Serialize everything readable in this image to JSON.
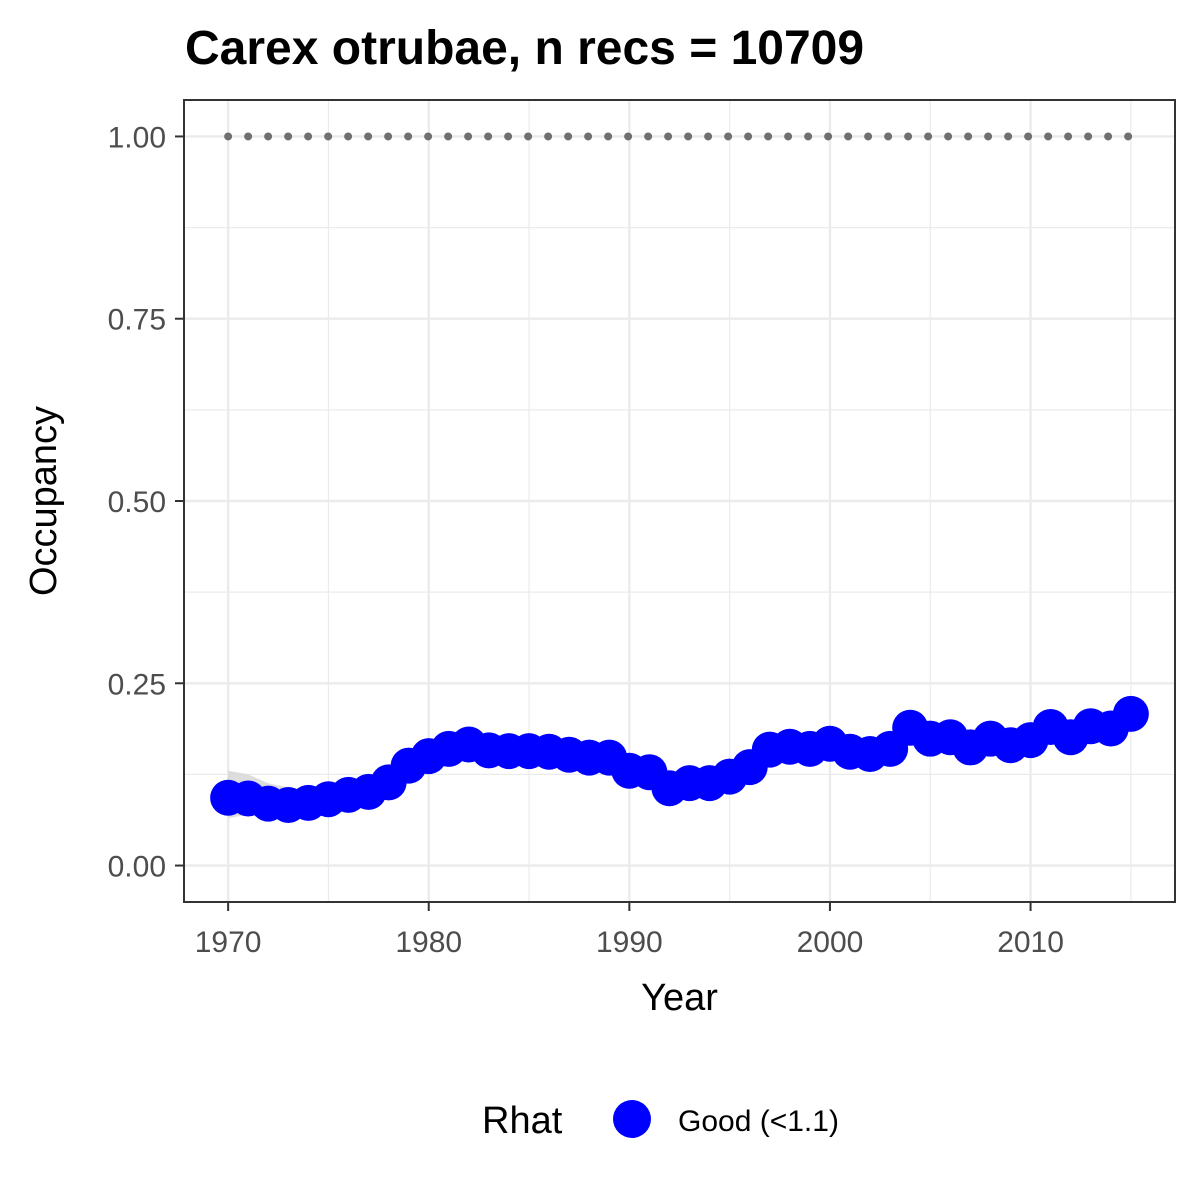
{
  "chart_data": {
    "type": "line",
    "title": "Carex otrubae, n recs = 10709",
    "xlabel": "Year",
    "ylabel": "Occupancy",
    "xlim": [
      1967.8,
      2017.2
    ],
    "ylim": [
      -0.05,
      1.05
    ],
    "x_ticks": [
      1970,
      1980,
      1990,
      2000,
      2010
    ],
    "x_tick_labels": [
      "1970",
      "1980",
      "1990",
      "2000",
      "2010"
    ],
    "y_ticks": [
      0,
      0.25,
      0.5,
      0.75,
      1.0
    ],
    "y_tick_labels": [
      "0.00",
      "0.25",
      "0.50",
      "0.75",
      "1.00"
    ],
    "grid": true,
    "legend": {
      "title": "Rhat",
      "position": "bottom",
      "entries": [
        {
          "label": "Good (<1.1)",
          "color": "#0000ff"
        }
      ]
    },
    "colors": {
      "points": "#0000ff",
      "ribbon": "#d9d9d9",
      "reference_line": "#707070",
      "grid": "#ebebeb",
      "panel_border": "#333333"
    },
    "x": [
      1970,
      1971,
      1972,
      1973,
      1974,
      1975,
      1976,
      1977,
      1978,
      1979,
      1980,
      1981,
      1982,
      1983,
      1984,
      1985,
      1986,
      1987,
      1988,
      1989,
      1990,
      1991,
      1992,
      1993,
      1994,
      1995,
      1996,
      1997,
      1998,
      1999,
      2000,
      2001,
      2002,
      2003,
      2004,
      2005,
      2006,
      2007,
      2008,
      2009,
      2010,
      2011,
      2012,
      2013,
      2014,
      2015
    ],
    "series": [
      {
        "name": "Good (<1.1)",
        "values": [
          0.093,
          0.092,
          0.085,
          0.083,
          0.086,
          0.091,
          0.097,
          0.101,
          0.114,
          0.137,
          0.15,
          0.16,
          0.166,
          0.158,
          0.157,
          0.157,
          0.156,
          0.152,
          0.148,
          0.148,
          0.13,
          0.128,
          0.106,
          0.113,
          0.113,
          0.122,
          0.135,
          0.159,
          0.163,
          0.16,
          0.167,
          0.156,
          0.153,
          0.16,
          0.189,
          0.174,
          0.176,
          0.162,
          0.174,
          0.165,
          0.172,
          0.19,
          0.176,
          0.191,
          0.188,
          0.208
        ],
        "lower": [
          0.065,
          0.07,
          0.07,
          0.07,
          0.073,
          0.078,
          0.083,
          0.087,
          0.1,
          0.122,
          0.135,
          0.145,
          0.151,
          0.144,
          0.143,
          0.143,
          0.142,
          0.138,
          0.134,
          0.134,
          0.116,
          0.114,
          0.093,
          0.099,
          0.1,
          0.108,
          0.121,
          0.145,
          0.149,
          0.146,
          0.153,
          0.142,
          0.14,
          0.146,
          0.175,
          0.16,
          0.162,
          0.149,
          0.16,
          0.151,
          0.158,
          0.176,
          0.162,
          0.176,
          0.173,
          0.192
        ],
        "upper": [
          0.13,
          0.125,
          0.113,
          0.107,
          0.105,
          0.107,
          0.112,
          0.116,
          0.13,
          0.155,
          0.172,
          0.182,
          0.188,
          0.178,
          0.176,
          0.175,
          0.174,
          0.17,
          0.165,
          0.165,
          0.146,
          0.144,
          0.121,
          0.128,
          0.128,
          0.138,
          0.152,
          0.176,
          0.18,
          0.176,
          0.183,
          0.172,
          0.169,
          0.176,
          0.205,
          0.19,
          0.192,
          0.178,
          0.19,
          0.181,
          0.188,
          0.206,
          0.192,
          0.207,
          0.204,
          0.225
        ]
      }
    ],
    "reference_line": {
      "y": 1.0,
      "style": "dotted"
    }
  }
}
